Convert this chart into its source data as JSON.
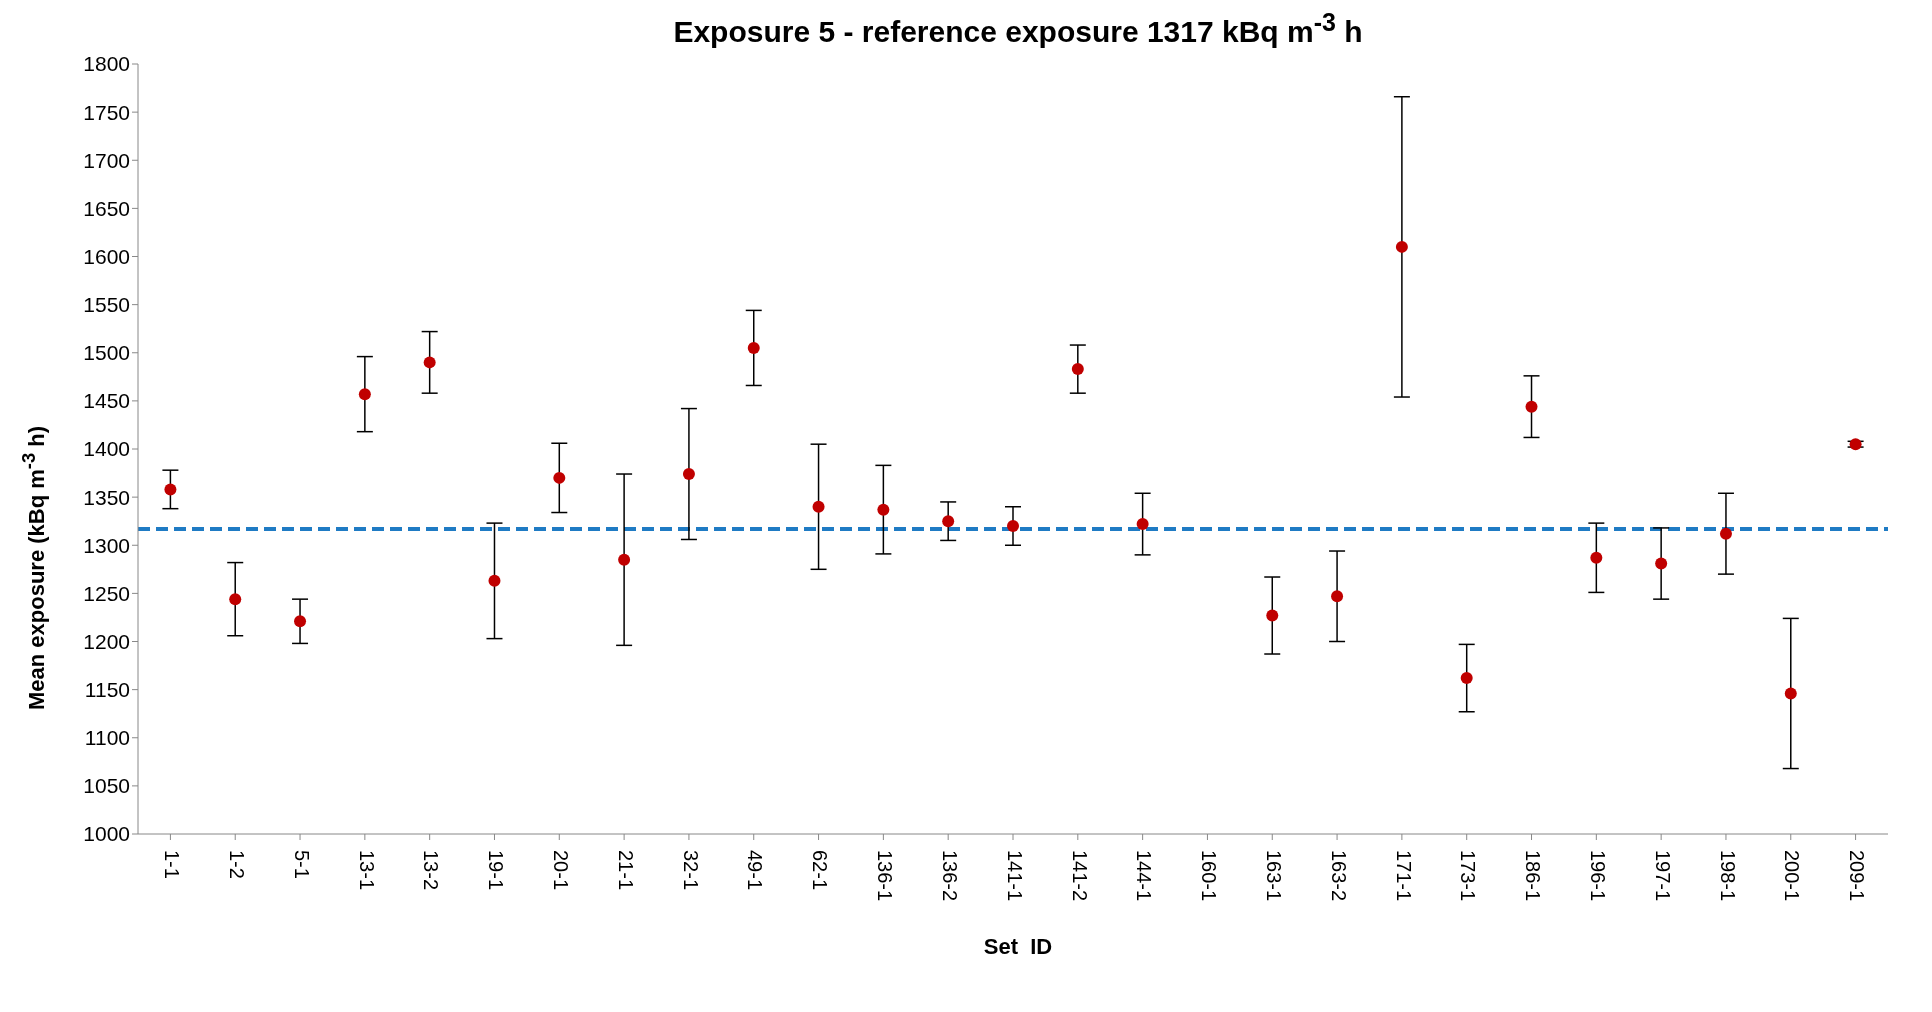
{
  "chart_data": {
    "type": "scatter",
    "title": "Exposure 5 - reference exposure 1317 kBq m$^{-3}$ h",
    "xlabel": "Set  ID",
    "ylabel": "Mean exposure (kBq m$^{-3}$ h)",
    "categories": [
      "1-1",
      "1-2",
      "5-1",
      "13-1",
      "13-2",
      "19-1",
      "20-1",
      "21-1",
      "32-1",
      "49-1",
      "62-1",
      "136-1",
      "136-2",
      "141-1",
      "141-2",
      "144-1",
      "160-1",
      "163-1",
      "163-2",
      "171-1",
      "173-1",
      "186-1",
      "196-1",
      "197-1",
      "198-1",
      "200-1",
      "209-1"
    ],
    "values": [
      1358,
      1244,
      1221,
      1457,
      1490,
      1263,
      1370,
      1285,
      1374,
      1505,
      1340,
      1337,
      1325,
      1320,
      1483,
      1322,
      null,
      1227,
      1247,
      1610,
      1162,
      1444,
      1287,
      1281,
      1312,
      1146,
      1405
    ],
    "errors": [
      20,
      38,
      23,
      39,
      32,
      60,
      36,
      89,
      68,
      39,
      65,
      46,
      20,
      20,
      25,
      32,
      null,
      40,
      47,
      156,
      35,
      32,
      36,
      37,
      42,
      78,
      3
    ],
    "color": "#c00000",
    "marker": "circle",
    "ylim": [
      1000,
      1800
    ],
    "yticks": [
      1000,
      1050,
      1100,
      1150,
      1200,
      1250,
      1300,
      1350,
      1400,
      1450,
      1500,
      1550,
      1600,
      1650,
      1700,
      1750,
      1800
    ],
    "ref_lines": [
      {
        "axis": "y",
        "value": 1317,
        "color": "#1f7bc4",
        "line_style": "dashed"
      }
    ]
  }
}
